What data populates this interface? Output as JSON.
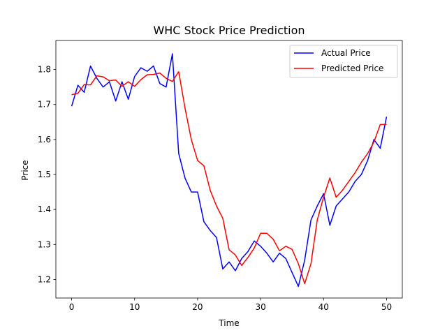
{
  "chart_data": {
    "type": "line",
    "title": "WHC Stock Price Prediction",
    "xlabel": "Time",
    "ylabel": "Price",
    "xlim": [
      -2.5,
      52.5
    ],
    "ylim": [
      1.147,
      1.883
    ],
    "xticks": [
      0,
      10,
      20,
      30,
      40,
      50
    ],
    "yticks": [
      1.2,
      1.3,
      1.4,
      1.5,
      1.6,
      1.7,
      1.8
    ],
    "legend_position": "top-right",
    "series": [
      {
        "name": "Actual Price",
        "color": "#0000ff",
        "x": [
          0,
          1,
          2,
          3,
          4,
          5,
          6,
          7,
          8,
          9,
          10,
          11,
          12,
          13,
          14,
          15,
          16,
          17,
          18,
          19,
          20,
          21,
          22,
          23,
          24,
          25,
          26,
          27,
          28,
          29,
          30,
          31,
          32,
          33,
          34,
          35,
          36,
          37,
          38,
          39,
          40,
          41,
          42,
          43,
          44,
          45,
          46,
          47,
          48,
          49,
          50
        ],
        "values": [
          1.695,
          1.755,
          1.735,
          1.81,
          1.775,
          1.75,
          1.765,
          1.71,
          1.765,
          1.715,
          1.78,
          1.805,
          1.795,
          1.81,
          1.76,
          1.75,
          1.845,
          1.56,
          1.49,
          1.45,
          1.45,
          1.365,
          1.34,
          1.32,
          1.23,
          1.25,
          1.225,
          1.26,
          1.28,
          1.31,
          1.295,
          1.275,
          1.25,
          1.275,
          1.26,
          1.22,
          1.18,
          1.255,
          1.37,
          1.41,
          1.445,
          1.355,
          1.41,
          1.43,
          1.45,
          1.48,
          1.5,
          1.54,
          1.6,
          1.575,
          1.665
        ]
      },
      {
        "name": "Predicted Price",
        "color": "#ff0000",
        "x": [
          0,
          1,
          2,
          3,
          4,
          5,
          6,
          7,
          8,
          9,
          10,
          11,
          12,
          13,
          14,
          15,
          16,
          17,
          18,
          19,
          20,
          21,
          22,
          23,
          24,
          25,
          26,
          27,
          28,
          29,
          30,
          31,
          32,
          33,
          34,
          35,
          36,
          37,
          38,
          39,
          40,
          41,
          42,
          43,
          44,
          45,
          46,
          47,
          48,
          49,
          50
        ],
        "values": [
          1.728,
          1.732,
          1.757,
          1.756,
          1.782,
          1.779,
          1.768,
          1.77,
          1.752,
          1.765,
          1.752,
          1.771,
          1.785,
          1.786,
          1.79,
          1.775,
          1.766,
          1.794,
          1.69,
          1.6,
          1.54,
          1.525,
          1.455,
          1.41,
          1.375,
          1.285,
          1.27,
          1.24,
          1.263,
          1.29,
          1.332,
          1.332,
          1.315,
          1.282,
          1.295,
          1.286,
          1.245,
          1.188,
          1.245,
          1.37,
          1.435,
          1.49,
          1.435,
          1.455,
          1.48,
          1.505,
          1.535,
          1.56,
          1.593,
          1.643,
          1.643
        ]
      }
    ]
  }
}
